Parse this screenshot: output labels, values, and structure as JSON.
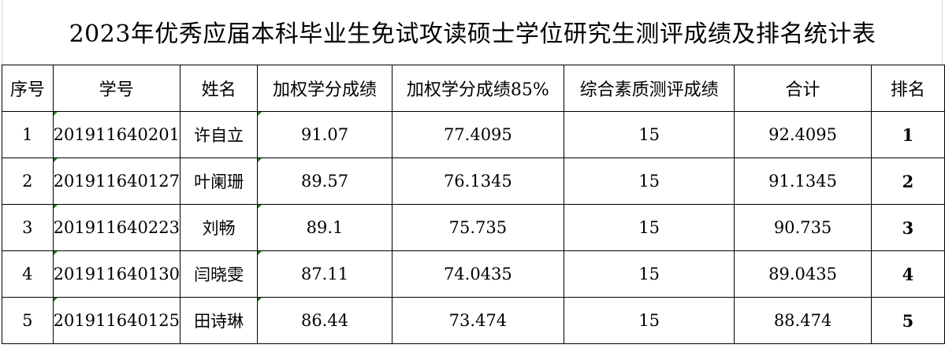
{
  "title": "2023年优秀应届本科毕业生免试攻读硕士学位研究生测评成绩及排名统计表",
  "columns": [
    "序号",
    "学号",
    "姓名",
    "加权学分成绩",
    "加权学分成绩85%",
    "综合素质测评成绩",
    "合计",
    "排名"
  ],
  "rows": [
    [
      "1",
      "201911640201",
      "许自立",
      "91.07",
      "77.4095",
      "15",
      "92.4095",
      "1"
    ],
    [
      "2",
      "201911640127",
      "叶阑珊",
      "89.57",
      "76.1345",
      "15",
      "91.1345",
      "2"
    ],
    [
      "3",
      "201911640223",
      "刘畅",
      "89.1",
      "75.735",
      "15",
      "90.735",
      "3"
    ],
    [
      "4",
      "201911640130",
      "闫晓雯",
      "87.11",
      "74.0435",
      "15",
      "89.0435",
      "4"
    ],
    [
      "5",
      "201911640125",
      "田诗琳",
      "86.44",
      "73.474",
      "15",
      "88.474",
      "5"
    ]
  ]
}
